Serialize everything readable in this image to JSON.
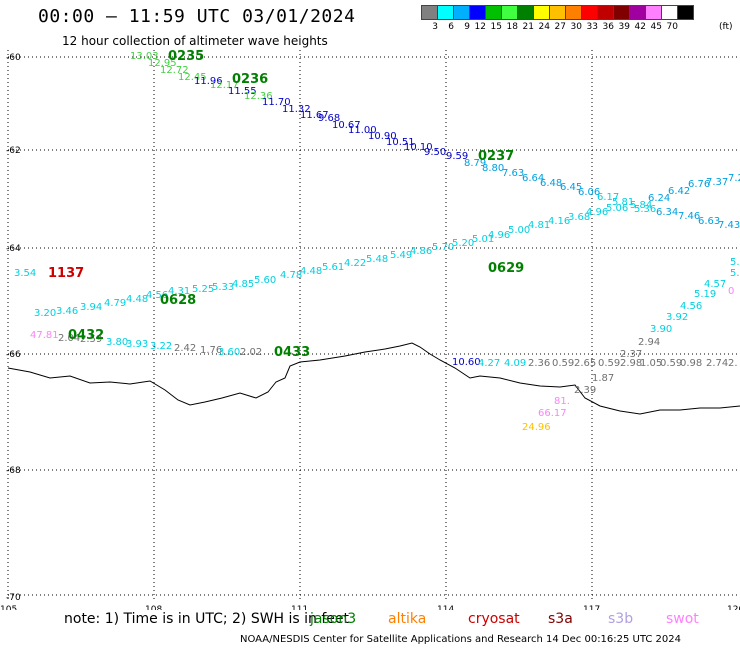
{
  "title": "00:00 – 11:59 UTC 03/01/2024",
  "subtitle": "12 hour collection of altimeter wave heights",
  "color_scale": {
    "colors": [
      "#808080",
      "#00ffff",
      "#00b0ff",
      "#0000ff",
      "#00c000",
      "#40ff40",
      "#008000",
      "#ffff00",
      "#ffc000",
      "#ff8000",
      "#ff0000",
      "#c00000",
      "#800000",
      "#a000a0",
      "#ff80ff",
      "#ffffff",
      "#000000"
    ],
    "labels": [
      "3",
      "6",
      "9",
      "12",
      "15",
      "18",
      "21",
      "24",
      "27",
      "30",
      "33",
      "36",
      "39",
      "42",
      "45",
      "70"
    ],
    "unit": "(ft)"
  },
  "axes": {
    "y_labels": [
      "-60",
      "-62",
      "-64",
      "-66",
      "-68",
      "-70"
    ],
    "x_labels": [
      "105",
      "108",
      "111",
      "114",
      "117",
      "120"
    ]
  },
  "tracks": [
    {
      "time": "0235",
      "color": "#008000",
      "label_pos": "upper-left"
    },
    {
      "time": "0236",
      "color": "#008000",
      "label_pos": "upper-left"
    },
    {
      "time": "0237",
      "color": "#008000",
      "label_pos": "center-right"
    },
    {
      "time": "0629",
      "color": "#008000",
      "label_pos": "center"
    },
    {
      "time": "0628",
      "color": "#008000",
      "label_pos": "left"
    },
    {
      "time": "0432",
      "color": "#008000",
      "label_pos": "left"
    },
    {
      "time": "0433",
      "color": "#008000",
      "label_pos": "center"
    },
    {
      "time": "1137",
      "color": "#cc0000",
      "label_pos": "left"
    }
  ],
  "readings": [
    {
      "v": "13.03",
      "c": "#40d040"
    },
    {
      "v": "12.95",
      "c": "#40d040"
    },
    {
      "v": "12.72",
      "c": "#40d040"
    },
    {
      "v": "12.45",
      "c": "#40d040"
    },
    {
      "v": "11.96",
      "c": "#0000cc"
    },
    {
      "v": "12.17",
      "c": "#40d040"
    },
    {
      "v": "11.55",
      "c": "#0000cc"
    },
    {
      "v": "12.36",
      "c": "#40d040"
    },
    {
      "v": "11.70",
      "c": "#0000cc"
    },
    {
      "v": "11.32",
      "c": "#0000cc"
    },
    {
      "v": "11.67",
      "c": "#0000cc"
    },
    {
      "v": "9.68",
      "c": "#0000cc"
    },
    {
      "v": "10.67",
      "c": "#0000cc"
    },
    {
      "v": "11.00",
      "c": "#0000cc"
    },
    {
      "v": "10.90",
      "c": "#0000cc"
    },
    {
      "v": "10.51",
      "c": "#0000cc"
    },
    {
      "v": "10.10",
      "c": "#0000cc"
    },
    {
      "v": "9.50",
      "c": "#0000cc"
    },
    {
      "v": "9.59",
      "c": "#0000cc"
    },
    {
      "v": "8.79",
      "c": "#00a0e0"
    },
    {
      "v": "8.80",
      "c": "#00a0e0"
    },
    {
      "v": "7.63",
      "c": "#00a0e0"
    },
    {
      "v": "6.64",
      "c": "#00a0e0"
    },
    {
      "v": "6.48",
      "c": "#00a0e0"
    },
    {
      "v": "6.45",
      "c": "#00a0e0"
    },
    {
      "v": "6.06",
      "c": "#00a0e0"
    },
    {
      "v": "6.17",
      "c": "#00d0e0"
    },
    {
      "v": "5.81",
      "c": "#00d0e0"
    },
    {
      "v": "5.84",
      "c": "#00d0e0"
    },
    {
      "v": "6.24",
      "c": "#00a0e0"
    },
    {
      "v": "6.42",
      "c": "#00a0e0"
    },
    {
      "v": "6.76",
      "c": "#00a0e0"
    },
    {
      "v": "7.37",
      "c": "#00a0e0"
    },
    {
      "v": "7.2",
      "c": "#00a0e0"
    },
    {
      "v": "5.06",
      "c": "#00d0e0"
    },
    {
      "v": "5.36",
      "c": "#00d0e0"
    },
    {
      "v": "6.34",
      "c": "#00a0e0"
    },
    {
      "v": "7.46",
      "c": "#00a0e0"
    },
    {
      "v": "6.63",
      "c": "#00a0e0"
    },
    {
      "v": "7.43",
      "c": "#00a0e0"
    },
    {
      "v": "3.54",
      "c": "#00d0e0"
    },
    {
      "v": "3.20",
      "c": "#00d0e0"
    },
    {
      "v": "3.46",
      "c": "#00d0e0"
    },
    {
      "v": "3.94",
      "c": "#00d0e0"
    },
    {
      "v": "4.79",
      "c": "#00d0e0"
    },
    {
      "v": "4.48",
      "c": "#00d0e0"
    },
    {
      "v": "4.56",
      "c": "#00d0e0"
    },
    {
      "v": "4.31",
      "c": "#00d0e0"
    },
    {
      "v": "5.25",
      "c": "#00d0e0"
    },
    {
      "v": "5.33",
      "c": "#00d0e0"
    },
    {
      "v": "4.85",
      "c": "#00d0e0"
    },
    {
      "v": "5.60",
      "c": "#00d0e0"
    },
    {
      "v": "4.78",
      "c": "#00d0e0"
    },
    {
      "v": "4.48",
      "c": "#00d0e0"
    },
    {
      "v": "5.61",
      "c": "#00d0e0"
    },
    {
      "v": "4.22",
      "c": "#00d0e0"
    },
    {
      "v": "5.48",
      "c": "#00d0e0"
    },
    {
      "v": "5.49",
      "c": "#00d0e0"
    },
    {
      "v": "4.86",
      "c": "#00d0e0"
    },
    {
      "v": "5.70",
      "c": "#00d0e0"
    },
    {
      "v": "5.20",
      "c": "#00d0e0"
    },
    {
      "v": "5.01",
      "c": "#00d0e0"
    },
    {
      "v": "4.96",
      "c": "#00d0e0"
    },
    {
      "v": "5.00",
      "c": "#00d0e0"
    },
    {
      "v": "4.81",
      "c": "#00d0e0"
    },
    {
      "v": "4.16",
      "c": "#00d0e0"
    },
    {
      "v": "3.68",
      "c": "#00d0e0"
    },
    {
      "v": "4.96",
      "c": "#00d0e0"
    },
    {
      "v": "5.",
      "c": "#00d0e0"
    },
    {
      "v": "5.1",
      "c": "#00d0e0"
    },
    {
      "v": "4.57",
      "c": "#00d0e0"
    },
    {
      "v": "5.19",
      "c": "#00d0e0"
    },
    {
      "v": "4.56",
      "c": "#00d0e0"
    },
    {
      "v": "3.92",
      "c": "#00d0e0"
    },
    {
      "v": "3.90",
      "c": "#00d0e0"
    },
    {
      "v": "2.94",
      "c": "#707070"
    },
    {
      "v": "2.37",
      "c": "#707070"
    },
    {
      "v": "1.87",
      "c": "#707070"
    },
    {
      "v": "2.39",
      "c": "#707070"
    },
    {
      "v": "47.81",
      "c": "#ff80ff"
    },
    {
      "v": "2.04",
      "c": "#707070"
    },
    {
      "v": "2.59",
      "c": "#707070"
    },
    {
      "v": "3.80",
      "c": "#00d0e0"
    },
    {
      "v": "3.93",
      "c": "#00d0e0"
    },
    {
      "v": "3.22",
      "c": "#00d0e0"
    },
    {
      "v": "2.42",
      "c": "#707070"
    },
    {
      "v": "1.76",
      "c": "#707070"
    },
    {
      "v": "3.60",
      "c": "#00d0e0"
    },
    {
      "v": "2.02",
      "c": "#707070"
    },
    {
      "v": "10.60",
      "c": "#0000cc"
    },
    {
      "v": "4.27",
      "c": "#00d0e0"
    },
    {
      "v": "4.09",
      "c": "#00d0e0"
    },
    {
      "v": "2.36",
      "c": "#707070"
    },
    {
      "v": "0.59",
      "c": "#707070"
    },
    {
      "v": "2.65",
      "c": "#707070"
    },
    {
      "v": "0.59",
      "c": "#707070"
    },
    {
      "v": "2.98",
      "c": "#707070"
    },
    {
      "v": "1.05",
      "c": "#707070"
    },
    {
      "v": "0.59",
      "c": "#707070"
    },
    {
      "v": "0.98",
      "c": "#707070"
    },
    {
      "v": "2.74",
      "c": "#707070"
    },
    {
      "v": "2.",
      "c": "#707070"
    },
    {
      "v": "81.",
      "c": "#ff80ff"
    },
    {
      "v": "66.17",
      "c": "#ff80ff"
    },
    {
      "v": "24.96",
      "c": "#ffc000"
    },
    {
      "v": "0",
      "c": "#ff80ff"
    }
  ],
  "note": "note:  1) Time is in UTC; 2) SWH is in feet",
  "satellites": [
    {
      "name": "jason3",
      "color": "#008000"
    },
    {
      "name": "altika",
      "color": "#ff8000"
    },
    {
      "name": "cryosat",
      "color": "#cc0000"
    },
    {
      "name": "s3a",
      "color": "#800000"
    },
    {
      "name": "s3b",
      "color": "#b0a0e0"
    },
    {
      "name": "swot",
      "color": "#ff80ff"
    }
  ],
  "credit": "NOAA/NESDIS Center for Satellite Applications and Research     14 Dec 00:16:25 UTC 2024"
}
